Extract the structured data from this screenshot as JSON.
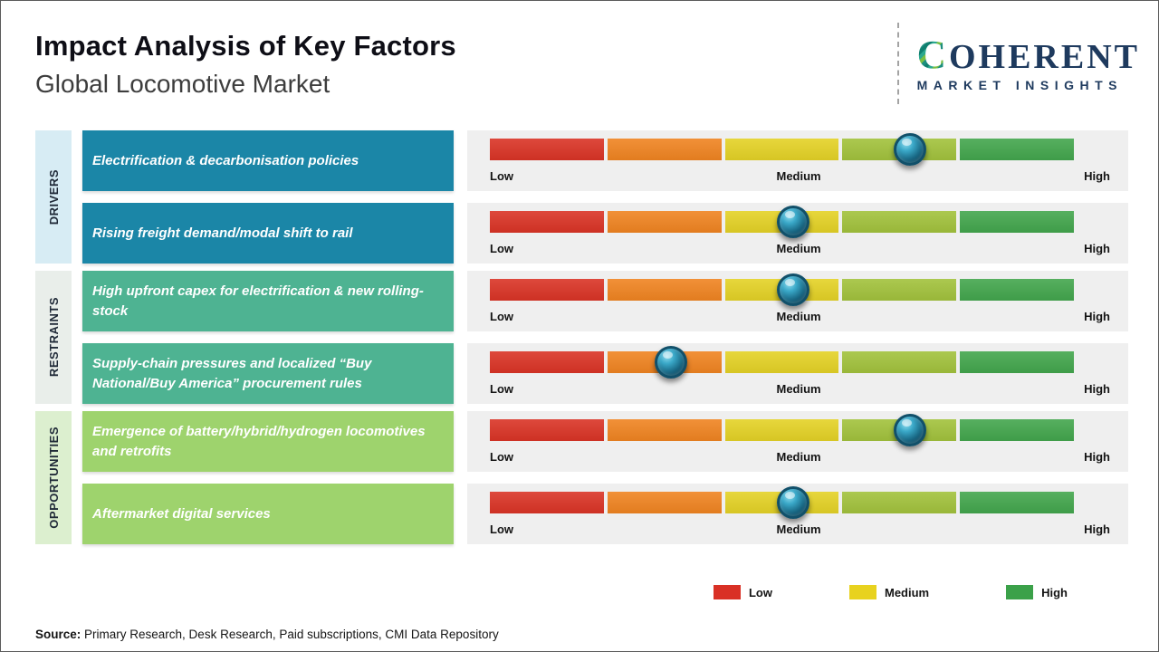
{
  "header": {
    "title": "Impact Analysis of Key Factors",
    "subtitle": "Global Locomotive Market"
  },
  "logo": {
    "brand_c": "C",
    "brand_rest": "OHERENT",
    "tagline": "MARKET INSIGHTS"
  },
  "groups": [
    {
      "label": "DRIVERS",
      "color": "#d7ecf4"
    },
    {
      "label": "RESTRAINTS",
      "color": "#e9eeea"
    },
    {
      "label": "OPPORTUNITIES",
      "color": "#dcefcf"
    }
  ],
  "rows": [
    {
      "label": "Electrification & decarbonisation policies",
      "color": "#1b86a7"
    },
    {
      "label": "Rising freight demand/modal shift to rail",
      "color": "#1b86a7"
    },
    {
      "label": "High upfront capex for electrification & new rolling-stock",
      "color": "#4eb392"
    },
    {
      "label": "Supply-chain pressures and localized “Buy National/Buy America” procurement rules",
      "color": "#4eb392"
    },
    {
      "label": "Emergence of battery/hybrid/hydrogen locomotives and retrofits",
      "color": "#9ed36d"
    },
    {
      "label": "Aftermarket digital services",
      "color": "#9ed36d"
    }
  ],
  "scale": {
    "low": "Low",
    "medium": "Medium",
    "high": "High"
  },
  "bar_segments": [
    "#da3426",
    "#f08421",
    "#e4d226",
    "#a2c23c",
    "#43a64d"
  ],
  "marker_color": "#15607c",
  "legend": [
    {
      "label": "Low",
      "color": "#d93025"
    },
    {
      "label": "Medium",
      "color": "#e8d21f"
    },
    {
      "label": "High",
      "color": "#3ba149"
    }
  ],
  "source": {
    "prefix": "Source:",
    "text": "Primary Research, Desk Research, Paid subscriptions, CMI Data Repository"
  },
  "chart_data": {
    "type": "bar",
    "title": "Impact Analysis of Key Factors",
    "subtitle": "Global Locomotive Market",
    "scale": [
      "Low",
      "Medium",
      "High"
    ],
    "axis_range_pct": [
      0,
      100
    ],
    "legend_position": "bottom-right",
    "factors": [
      {
        "category": "Drivers",
        "factor": "Electrification & decarbonisation policies",
        "impact_position_pct": 72,
        "impact_level": "Medium-High"
      },
      {
        "category": "Drivers",
        "factor": "Rising freight demand/modal shift to rail",
        "impact_position_pct": 52,
        "impact_level": "Medium"
      },
      {
        "category": "Restraints",
        "factor": "High upfront capex for electrification & new rolling-stock",
        "impact_position_pct": 52,
        "impact_level": "Medium"
      },
      {
        "category": "Restraints",
        "factor": "Supply-chain pressures and localized “Buy National/Buy America” procurement rules",
        "impact_position_pct": 31,
        "impact_level": "Low-Medium"
      },
      {
        "category": "Opportunities",
        "factor": "Emergence of battery/hybrid/hydrogen locomotives and retrofits",
        "impact_position_pct": 72,
        "impact_level": "Medium-High"
      },
      {
        "category": "Opportunities",
        "factor": "Aftermarket digital services",
        "impact_position_pct": 52,
        "impact_level": "Medium"
      }
    ]
  }
}
